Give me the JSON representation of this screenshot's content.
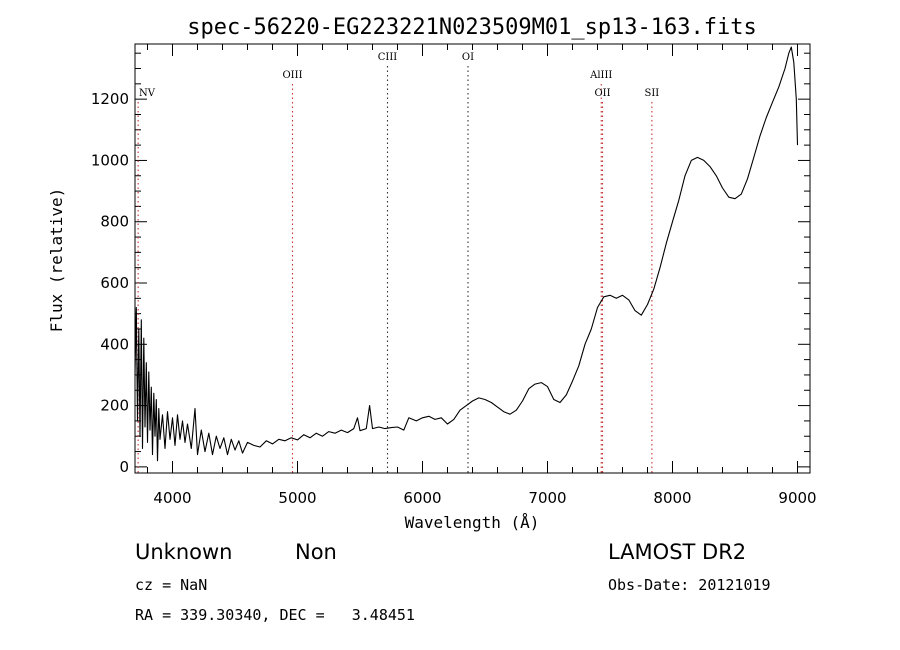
{
  "chart_data": {
    "type": "line",
    "title": "spec-56220-EG223221N023509M01_sp13-163.fits",
    "xlabel": "Wavelength (Å)",
    "ylabel": "Flux (relative)",
    "xlim": [
      3700,
      9100
    ],
    "ylim": [
      -20,
      1380
    ],
    "x_ticks": [
      4000,
      5000,
      6000,
      7000,
      8000,
      9000
    ],
    "y_ticks": [
      0,
      200,
      400,
      600,
      800,
      1000,
      1200
    ],
    "grid": false,
    "series": [
      {
        "color": "#000000",
        "points": [
          [
            3700,
            300
          ],
          [
            3710,
            520
          ],
          [
            3720,
            150
          ],
          [
            3730,
            450
          ],
          [
            3740,
            100
          ],
          [
            3750,
            480
          ],
          [
            3760,
            60
          ],
          [
            3770,
            420
          ],
          [
            3780,
            130
          ],
          [
            3790,
            340
          ],
          [
            3800,
            80
          ],
          [
            3810,
            310
          ],
          [
            3820,
            120
          ],
          [
            3830,
            260
          ],
          [
            3840,
            40
          ],
          [
            3850,
            240
          ],
          [
            3860,
            100
          ],
          [
            3870,
            220
          ],
          [
            3880,
            20
          ],
          [
            3890,
            190
          ],
          [
            3900,
            90
          ],
          [
            3920,
            170
          ],
          [
            3940,
            60
          ],
          [
            3960,
            180
          ],
          [
            3980,
            90
          ],
          [
            4000,
            160
          ],
          [
            4020,
            70
          ],
          [
            4040,
            170
          ],
          [
            4060,
            90
          ],
          [
            4080,
            150
          ],
          [
            4100,
            80
          ],
          [
            4120,
            140
          ],
          [
            4150,
            60
          ],
          [
            4180,
            190
          ],
          [
            4200,
            40
          ],
          [
            4230,
            120
          ],
          [
            4260,
            50
          ],
          [
            4290,
            110
          ],
          [
            4320,
            40
          ],
          [
            4350,
            100
          ],
          [
            4380,
            60
          ],
          [
            4410,
            95
          ],
          [
            4440,
            40
          ],
          [
            4470,
            90
          ],
          [
            4500,
            55
          ],
          [
            4530,
            85
          ],
          [
            4560,
            45
          ],
          [
            4600,
            80
          ],
          [
            4650,
            70
          ],
          [
            4700,
            65
          ],
          [
            4750,
            85
          ],
          [
            4800,
            75
          ],
          [
            4850,
            90
          ],
          [
            4900,
            85
          ],
          [
            4950,
            95
          ],
          [
            5000,
            88
          ],
          [
            5050,
            105
          ],
          [
            5100,
            95
          ],
          [
            5150,
            110
          ],
          [
            5200,
            100
          ],
          [
            5250,
            115
          ],
          [
            5300,
            110
          ],
          [
            5350,
            120
          ],
          [
            5400,
            112
          ],
          [
            5450,
            125
          ],
          [
            5480,
            160
          ],
          [
            5500,
            118
          ],
          [
            5550,
            125
          ],
          [
            5577,
            200
          ],
          [
            5600,
            125
          ],
          [
            5650,
            130
          ],
          [
            5700,
            125
          ],
          [
            5750,
            128
          ],
          [
            5800,
            130
          ],
          [
            5850,
            120
          ],
          [
            5890,
            160
          ],
          [
            5950,
            150
          ],
          [
            6000,
            160
          ],
          [
            6050,
            165
          ],
          [
            6100,
            155
          ],
          [
            6150,
            160
          ],
          [
            6200,
            140
          ],
          [
            6250,
            155
          ],
          [
            6300,
            185
          ],
          [
            6350,
            200
          ],
          [
            6400,
            215
          ],
          [
            6450,
            225
          ],
          [
            6500,
            220
          ],
          [
            6550,
            210
          ],
          [
            6600,
            195
          ],
          [
            6650,
            180
          ],
          [
            6700,
            172
          ],
          [
            6750,
            185
          ],
          [
            6800,
            215
          ],
          [
            6850,
            255
          ],
          [
            6900,
            270
          ],
          [
            6950,
            275
          ],
          [
            7000,
            262
          ],
          [
            7050,
            220
          ],
          [
            7100,
            210
          ],
          [
            7150,
            235
          ],
          [
            7200,
            280
          ],
          [
            7250,
            330
          ],
          [
            7300,
            400
          ],
          [
            7350,
            450
          ],
          [
            7400,
            520
          ],
          [
            7450,
            555
          ],
          [
            7500,
            560
          ],
          [
            7550,
            550
          ],
          [
            7600,
            560
          ],
          [
            7650,
            545
          ],
          [
            7700,
            510
          ],
          [
            7750,
            495
          ],
          [
            7800,
            530
          ],
          [
            7850,
            580
          ],
          [
            7900,
            650
          ],
          [
            7950,
            730
          ],
          [
            8000,
            800
          ],
          [
            8050,
            870
          ],
          [
            8100,
            950
          ],
          [
            8150,
            1000
          ],
          [
            8200,
            1010
          ],
          [
            8250,
            1000
          ],
          [
            8300,
            980
          ],
          [
            8350,
            950
          ],
          [
            8400,
            910
          ],
          [
            8450,
            880
          ],
          [
            8500,
            875
          ],
          [
            8550,
            890
          ],
          [
            8600,
            940
          ],
          [
            8650,
            1010
          ],
          [
            8700,
            1080
          ],
          [
            8750,
            1140
          ],
          [
            8800,
            1190
          ],
          [
            8850,
            1240
          ],
          [
            8900,
            1300
          ],
          [
            8930,
            1350
          ],
          [
            8950,
            1370
          ],
          [
            8970,
            1320
          ],
          [
            8990,
            1200
          ],
          [
            9000,
            1050
          ]
        ]
      }
    ],
    "lines": [
      {
        "label": "NV",
        "x": 3725,
        "color": "#cc3333",
        "row": 3
      },
      {
        "label": "OIII",
        "x": 4960,
        "color": "#cc3333",
        "row": 2
      },
      {
        "label": "CIII",
        "x": 5720,
        "color": "#333333",
        "row": 1
      },
      {
        "label": "OI",
        "x": 6364,
        "color": "#333333",
        "row": 1
      },
      {
        "label": "AlIII",
        "x": 7430,
        "color": "#cc3333",
        "row": 2
      },
      {
        "label": "OII",
        "x": 7440,
        "color": "#cc3333",
        "row": 3
      },
      {
        "label": "SII",
        "x": 7835,
        "color": "#cc3333",
        "row": 3
      }
    ]
  },
  "info": {
    "object_class": "Unknown",
    "subclass": "Non",
    "survey": "LAMOST DR2",
    "cz": "cz = NaN",
    "obs_date": "Obs-Date: 20121019",
    "coords": "RA = 339.30340, DEC =   3.48451"
  }
}
